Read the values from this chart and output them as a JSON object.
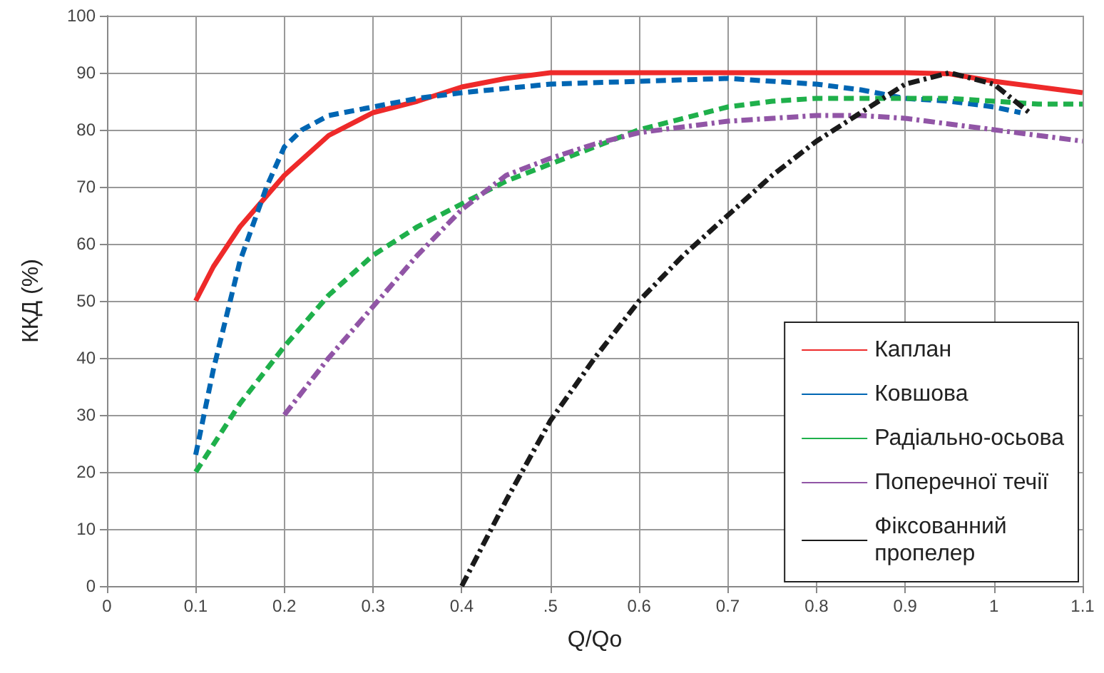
{
  "chart_data": {
    "type": "line",
    "xlabel": "Q/Qo",
    "ylabel": "ККД (%)",
    "xlim": [
      0,
      1.1
    ],
    "ylim": [
      0,
      100
    ],
    "xticks": [
      0,
      0.1,
      0.2,
      0.3,
      0.4,
      {
        "value": 0.5,
        "label": ".5"
      },
      0.6,
      0.7,
      0.8,
      0.9,
      1,
      1.1
    ],
    "yticks": [
      0,
      10,
      20,
      30,
      40,
      50,
      60,
      70,
      80,
      90,
      100
    ],
    "grid": true,
    "legend": "bottom right",
    "marker": "none",
    "series": [
      {
        "name": "Каплан",
        "color": "#ee2a2a",
        "line_style": "solid",
        "x": [
          0.1,
          0.12,
          0.15,
          0.2,
          0.25,
          0.3,
          0.35,
          0.4,
          0.45,
          0.5,
          0.6,
          0.7,
          0.8,
          0.9,
          0.95,
          1.0,
          1.05,
          1.1
        ],
        "values": [
          50,
          56,
          63,
          72,
          79,
          83,
          85,
          87.5,
          89,
          90,
          90,
          90,
          90,
          90,
          89.8,
          88.5,
          87.5,
          86.5
        ]
      },
      {
        "name": "Ковшова",
        "color": "#0066b3",
        "line_style": "dashed",
        "x": [
          0.1,
          0.12,
          0.15,
          0.18,
          0.2,
          0.22,
          0.25,
          0.3,
          0.35,
          0.4,
          0.5,
          0.6,
          0.7,
          0.8,
          0.85,
          0.9,
          0.95,
          1.0,
          1.03
        ],
        "values": [
          23,
          38,
          57,
          70,
          77,
          80,
          82.5,
          84,
          85.5,
          86.5,
          88,
          88.5,
          89,
          88,
          87,
          85.5,
          85,
          84,
          83
        ]
      },
      {
        "name": "Радіально-осьова",
        "color": "#1fb04b",
        "line_style": "dashed",
        "x": [
          0.1,
          0.15,
          0.2,
          0.25,
          0.3,
          0.35,
          0.4,
          0.45,
          0.5,
          0.55,
          0.6,
          0.65,
          0.7,
          0.75,
          0.8,
          0.85,
          0.9,
          0.95,
          1.0,
          1.05,
          1.1
        ],
        "values": [
          20,
          32,
          42,
          51,
          58,
          63,
          67,
          71,
          74,
          77,
          80,
          82,
          84,
          85,
          85.5,
          85.5,
          85.5,
          85.5,
          85,
          84.5,
          84.5
        ]
      },
      {
        "name": "Поперечної течії",
        "color": "#9155a6",
        "line_style": "dashdot",
        "x": [
          0.2,
          0.25,
          0.3,
          0.35,
          0.4,
          0.45,
          0.5,
          0.55,
          0.6,
          0.65,
          0.7,
          0.75,
          0.8,
          0.85,
          0.9,
          0.95,
          1.0,
          1.05,
          1.1
        ],
        "values": [
          30,
          40,
          49,
          58,
          66,
          72,
          75,
          77.5,
          79.5,
          80.5,
          81.5,
          82,
          82.5,
          82.5,
          82,
          81,
          80,
          79,
          78
        ]
      },
      {
        "name": "Фіксованний\nпропелер",
        "color": "#1a1a1a",
        "line_style": "dashdot",
        "x": [
          0.4,
          0.45,
          0.5,
          0.55,
          0.6,
          0.65,
          0.7,
          0.75,
          0.8,
          0.85,
          0.9,
          0.95,
          1.0,
          1.04
        ],
        "values": [
          0,
          15,
          29,
          40,
          50,
          58,
          65,
          72,
          78,
          83,
          88,
          90,
          88,
          83
        ]
      }
    ]
  }
}
